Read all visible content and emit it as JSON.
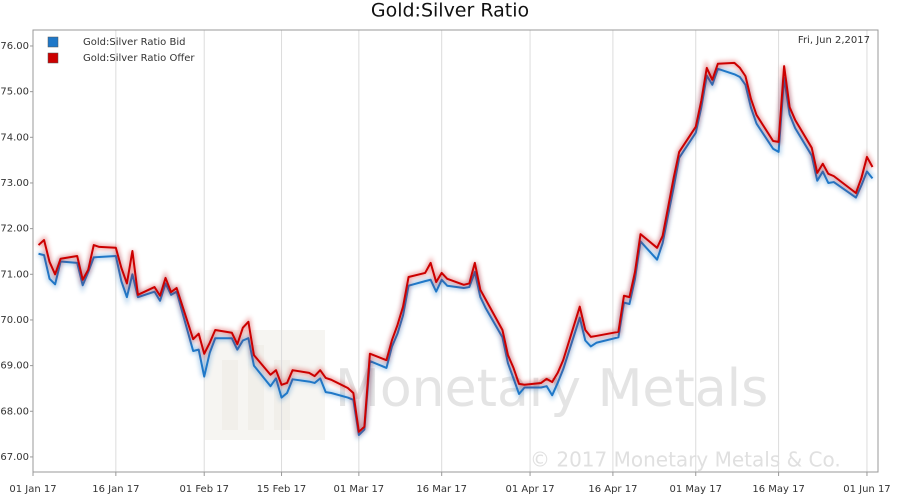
{
  "chart_data": {
    "type": "line",
    "title": "Gold:Silver Ratio",
    "annotations": [
      "Fri, Jun 2,2017",
      "Monetary Metals",
      "© 2017 Monetary Metals & Co."
    ],
    "x": [
      "2017-01-02",
      "2017-01-03",
      "2017-01-04",
      "2017-01-05",
      "2017-01-06",
      "2017-01-09",
      "2017-01-10",
      "2017-01-11",
      "2017-01-12",
      "2017-01-13",
      "2017-01-16",
      "2017-01-17",
      "2017-01-18",
      "2017-01-19",
      "2017-01-20",
      "2017-01-23",
      "2017-01-24",
      "2017-01-25",
      "2017-01-26",
      "2017-01-27",
      "2017-01-30",
      "2017-01-31",
      "2017-02-01",
      "2017-02-02",
      "2017-02-03",
      "2017-02-06",
      "2017-02-07",
      "2017-02-08",
      "2017-02-09",
      "2017-02-10",
      "2017-02-13",
      "2017-02-14",
      "2017-02-15",
      "2017-02-16",
      "2017-02-17",
      "2017-02-20",
      "2017-02-21",
      "2017-02-22",
      "2017-02-23",
      "2017-02-24",
      "2017-02-27",
      "2017-02-28",
      "2017-03-01",
      "2017-03-02",
      "2017-03-03",
      "2017-03-06",
      "2017-03-07",
      "2017-03-08",
      "2017-03-09",
      "2017-03-10",
      "2017-03-13",
      "2017-03-14",
      "2017-03-15",
      "2017-03-16",
      "2017-03-17",
      "2017-03-20",
      "2017-03-21",
      "2017-03-22",
      "2017-03-23",
      "2017-03-24",
      "2017-03-27",
      "2017-03-28",
      "2017-03-29",
      "2017-03-30",
      "2017-03-31",
      "2017-04-03",
      "2017-04-04",
      "2017-04-05",
      "2017-04-06",
      "2017-04-07",
      "2017-04-10",
      "2017-04-11",
      "2017-04-12",
      "2017-04-13",
      "2017-04-17",
      "2017-04-18",
      "2017-04-19",
      "2017-04-20",
      "2017-04-21",
      "2017-04-24",
      "2017-04-25",
      "2017-04-26",
      "2017-04-27",
      "2017-04-28",
      "2017-05-01",
      "2017-05-02",
      "2017-05-03",
      "2017-05-04",
      "2017-05-05",
      "2017-05-08",
      "2017-05-09",
      "2017-05-10",
      "2017-05-11",
      "2017-05-12",
      "2017-05-15",
      "2017-05-16",
      "2017-05-17",
      "2017-05-18",
      "2017-05-19",
      "2017-05-22",
      "2017-05-23",
      "2017-05-24",
      "2017-05-25",
      "2017-05-26",
      "2017-05-30",
      "2017-05-31",
      "2017-06-01",
      "2017-06-02"
    ],
    "series": [
      {
        "name": "Gold:Silver Ratio Bid",
        "color": "#1f78c8",
        "values": [
          71.45,
          71.42,
          70.9,
          70.78,
          71.28,
          71.25,
          70.76,
          71.05,
          71.37,
          71.38,
          71.4,
          70.85,
          70.5,
          71.0,
          70.5,
          70.62,
          70.42,
          70.8,
          70.55,
          70.62,
          69.32,
          69.35,
          68.76,
          69.28,
          69.6,
          69.6,
          69.35,
          69.55,
          69.6,
          69.0,
          68.55,
          68.72,
          68.3,
          68.4,
          68.7,
          68.65,
          68.62,
          68.72,
          68.42,
          68.4,
          68.3,
          68.25,
          67.48,
          67.6,
          69.1,
          68.95,
          69.42,
          69.7,
          70.1,
          70.75,
          70.85,
          70.88,
          70.62,
          70.88,
          70.75,
          70.7,
          70.72,
          71.05,
          70.5,
          70.25,
          69.62,
          69.05,
          68.72,
          68.38,
          68.52,
          68.52,
          68.55,
          68.35,
          68.62,
          68.92,
          70.05,
          69.55,
          69.42,
          69.5,
          69.62,
          70.38,
          70.35,
          70.9,
          71.72,
          71.32,
          71.68,
          72.3,
          72.9,
          73.55,
          74.1,
          74.65,
          75.35,
          75.15,
          75.5,
          75.38,
          75.32,
          75.15,
          74.65,
          74.3,
          73.75,
          73.68,
          75.3,
          74.5,
          74.2,
          73.6,
          73.05,
          73.25,
          73.0,
          73.02,
          72.68,
          72.95,
          73.25,
          73.1
        ]
      },
      {
        "name": "Gold:Silver Ratio Offer",
        "color": "#cc0000",
        "values": [
          71.64,
          71.75,
          71.27,
          71.0,
          71.34,
          71.4,
          70.88,
          71.1,
          71.64,
          71.6,
          71.58,
          71.14,
          70.8,
          71.51,
          70.55,
          70.72,
          70.53,
          70.92,
          70.61,
          70.7,
          69.58,
          69.7,
          69.26,
          69.5,
          69.78,
          69.72,
          69.47,
          69.83,
          69.96,
          69.23,
          68.8,
          68.9,
          68.58,
          68.62,
          68.9,
          68.84,
          68.77,
          68.9,
          68.73,
          68.69,
          68.51,
          68.4,
          67.55,
          67.66,
          69.26,
          69.12,
          69.56,
          69.89,
          70.29,
          70.94,
          71.03,
          71.25,
          70.83,
          71.03,
          70.9,
          70.77,
          70.8,
          71.25,
          70.66,
          70.44,
          69.78,
          69.23,
          68.95,
          68.6,
          68.58,
          68.62,
          68.71,
          68.64,
          68.84,
          69.12,
          70.29,
          69.78,
          69.63,
          69.65,
          69.74,
          70.53,
          70.5,
          71.05,
          71.88,
          71.58,
          71.84,
          72.47,
          73.11,
          73.68,
          74.23,
          74.8,
          75.52,
          75.26,
          75.61,
          75.63,
          75.52,
          75.34,
          74.84,
          74.49,
          73.92,
          73.9,
          75.56,
          74.66,
          74.38,
          73.77,
          73.22,
          73.42,
          73.2,
          73.15,
          72.78,
          73.11,
          73.57,
          73.35
        ]
      }
    ],
    "xlim": [
      "2017-01-01",
      "2017-06-03"
    ],
    "xticks": [
      {
        "value": "2017-01-01",
        "label": "01 Jan 17"
      },
      {
        "value": "2017-01-16",
        "label": "16 Jan 17"
      },
      {
        "value": "2017-02-01",
        "label": "01 Feb 17"
      },
      {
        "value": "2017-02-15",
        "label": "15 Feb 17"
      },
      {
        "value": "2017-03-01",
        "label": "01 Mar 17"
      },
      {
        "value": "2017-03-16",
        "label": "16 Mar 17"
      },
      {
        "value": "2017-04-01",
        "label": "01 Apr 17"
      },
      {
        "value": "2017-04-16",
        "label": "16 Apr 17"
      },
      {
        "value": "2017-05-01",
        "label": "01 May 17"
      },
      {
        "value": "2017-05-16",
        "label": "16 May 17"
      },
      {
        "value": "2017-06-01",
        "label": "01 Jun 17"
      }
    ],
    "ylim": [
      66.67,
      76.35
    ],
    "yticks": [
      {
        "value": 67,
        "label": "67.00"
      },
      {
        "value": 68,
        "label": "68.00"
      },
      {
        "value": 69,
        "label": "69.00"
      },
      {
        "value": 70,
        "label": "70.00"
      },
      {
        "value": 71,
        "label": "71.00"
      },
      {
        "value": 72,
        "label": "72.00"
      },
      {
        "value": 73,
        "label": "73.00"
      },
      {
        "value": 74,
        "label": "74.00"
      },
      {
        "value": 75,
        "label": "75.00"
      },
      {
        "value": 76,
        "label": "76.00"
      }
    ],
    "grid": "x",
    "legend": "top-left"
  }
}
